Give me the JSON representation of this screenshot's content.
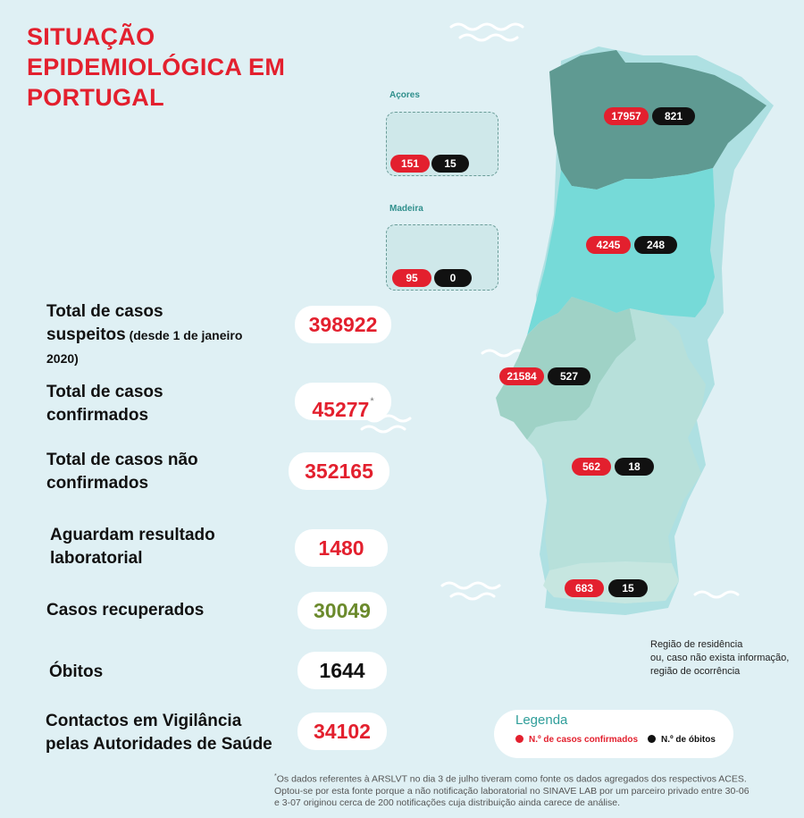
{
  "title": [
    "SITUAÇÃO",
    "EPIDEMIOLÓGICA EM",
    "PORTUGAL"
  ],
  "stats": {
    "suspeitos": {
      "label_line1": "Total de casos",
      "label_line2": "suspeitos",
      "label_small": " (desde 1 de janeiro",
      "label_line3": "2020)",
      "value": "398922"
    },
    "confirmados": {
      "label_line1": "Total de casos",
      "label_line2": "confirmados",
      "value": "45277",
      "mark": "*"
    },
    "nao_confirmados": {
      "label_line1": "Total de casos não",
      "label_line2": "confirmados",
      "value": "352165"
    },
    "aguardam": {
      "label_line1": "Aguardam resultado",
      "label_line2": "laboratorial",
      "value": "1480"
    },
    "recuperados": {
      "label": "Casos recuperados",
      "value": "30049"
    },
    "obitos": {
      "label": "Óbitos",
      "value": "1644"
    },
    "contactos": {
      "label_line1": "Contactos em Vigilância",
      "label_line2": "pelas Autoridades de Saúde",
      "value": "34102"
    }
  },
  "islands": {
    "acores": {
      "label": "Açores",
      "cases": "151",
      "deaths": "15"
    },
    "madeira": {
      "label": "Madeira",
      "cases": "95",
      "deaths": "0"
    }
  },
  "regions": {
    "norte": {
      "cases": "17957",
      "deaths": "821"
    },
    "centro": {
      "cases": "4245",
      "deaths": "248"
    },
    "lvt": {
      "cases": "21584",
      "deaths": "527"
    },
    "alentejo": {
      "cases": "562",
      "deaths": "18"
    },
    "algarve": {
      "cases": "683",
      "deaths": "15"
    }
  },
  "colors": {
    "norte": "#5f9a92",
    "centro": "#76dad8",
    "lvt": "#9fd2c6",
    "alentejo": "#b7e0da",
    "algarve": "#c6e6e0",
    "shadow": "#aee0e2",
    "accent": "#e3202e"
  },
  "note": [
    "Região de residência",
    "ou, caso não exista informação,",
    "região de ocorrência"
  ],
  "legend": {
    "title": "Legenda",
    "cases_label": "N.º de casos confirmados",
    "deaths_label": "N.º de óbitos"
  },
  "footnote": {
    "mark": "*",
    "line1": "Os dados referentes à ARSLVT no dia 3 de julho tiveram como fonte os dados agregados dos respectivos ACES.",
    "line2": "Optou-se por esta fonte porque a não notificação laboratorial no SINAVE LAB por um parceiro privado entre 30-06",
    "line3": "e 3-07 originou cerca de 200 notificações cuja distribuição ainda carece de análise."
  }
}
